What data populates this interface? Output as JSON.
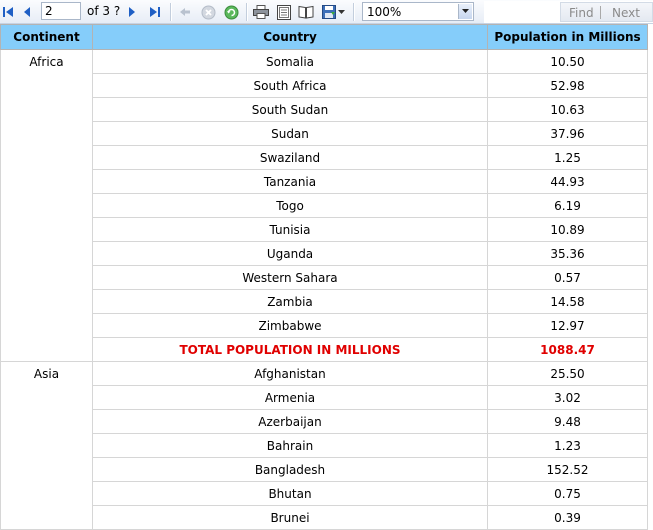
{
  "toolbar": {
    "page_value": "2",
    "of_text": "of  3 ?",
    "zoom_value": "100%",
    "find_label": "Find",
    "next_label": "Next"
  },
  "table": {
    "headers": [
      "Continent",
      "Country",
      "Population in Millions"
    ],
    "groups": [
      {
        "continent": "Africa",
        "rows": [
          {
            "country": "Somalia",
            "population": "10.50"
          },
          {
            "country": "South Africa",
            "population": "52.98"
          },
          {
            "country": "South Sudan",
            "population": "10.63"
          },
          {
            "country": "Sudan",
            "population": "37.96"
          },
          {
            "country": "Swaziland",
            "population": "1.25"
          },
          {
            "country": "Tanzania",
            "population": "44.93"
          },
          {
            "country": "Togo",
            "population": "6.19"
          },
          {
            "country": "Tunisia",
            "population": "10.89"
          },
          {
            "country": "Uganda",
            "population": "35.36"
          },
          {
            "country": "Western Sahara",
            "population": "0.57"
          },
          {
            "country": "Zambia",
            "population": "14.58"
          },
          {
            "country": "Zimbabwe",
            "population": "12.97"
          }
        ],
        "total_label": "TOTAL POPULATION IN MILLIONS",
        "total_value": "1088.47"
      },
      {
        "continent": "Asia",
        "rows": [
          {
            "country": "Afghanistan",
            "population": "25.50"
          },
          {
            "country": "Armenia",
            "population": "3.02"
          },
          {
            "country": "Azerbaijan",
            "population": "9.48"
          },
          {
            "country": "Bahrain",
            "population": "1.23"
          },
          {
            "country": "Bangladesh",
            "population": "152.52"
          },
          {
            "country": "Bhutan",
            "population": "0.75"
          },
          {
            "country": "Brunei",
            "population": "0.39"
          }
        ]
      }
    ]
  },
  "colors": {
    "header_bg": "#85cdfa",
    "total_text": "#e00000",
    "nav_blue": "#1f5fc4"
  }
}
